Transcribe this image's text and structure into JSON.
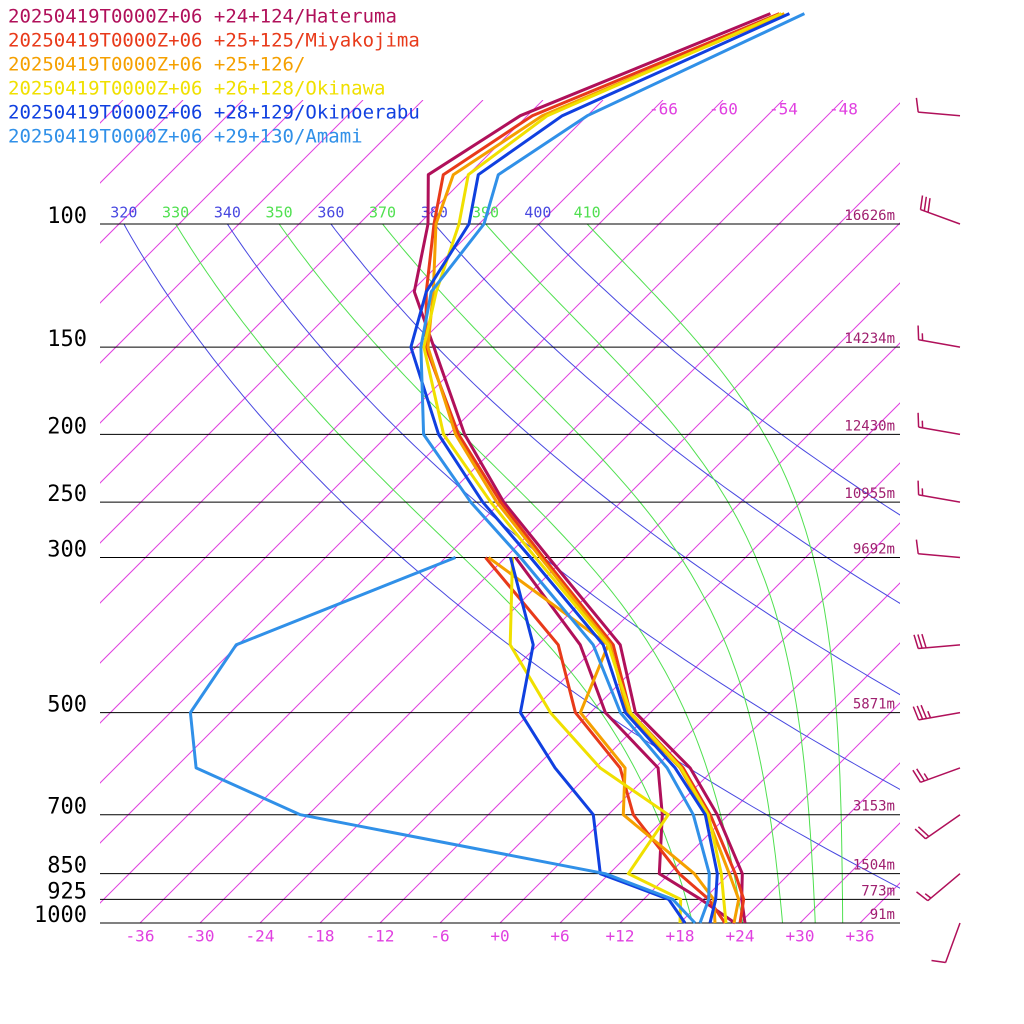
{
  "chart_data": {
    "type": "skewt",
    "pressure": [
      1000,
      925,
      850,
      700,
      600,
      500,
      400,
      300,
      250,
      200,
      150,
      125,
      100,
      85,
      70,
      50
    ],
    "dewpoint_pressure": [
      1000,
      925,
      850,
      700,
      600,
      500,
      400,
      300
    ],
    "series": [
      {
        "name": "20250419T0000Z+06 +24+124/Hateruma",
        "color": "#b0105a",
        "temperature": [
          24.5,
          21.8,
          19.3,
          10.9,
          3.5,
          -7.5,
          -15.8,
          -31.7,
          -41.7,
          -52.4,
          -64.2,
          -71.7,
          -77.1,
          -82,
          -78.7,
          -63.9
        ],
        "dewpoint": [
          23.5,
          17.7,
          11.0,
          5.4,
          0.3,
          -10.5,
          -19.8,
          -35
        ]
      },
      {
        "name": "20250419T0000Z+06 +25+125/Miyakojima",
        "color": "#e83a1a",
        "temperature": [
          24.0,
          22.0,
          18.6,
          10.2,
          2.8,
          -8.0,
          -16.5,
          -32.2,
          -42.0,
          -53.0,
          -65.0,
          -70.5,
          -76.5,
          -80.5,
          -77.5,
          -63.0
        ],
        "dewpoint": [
          22.5,
          18.5,
          13.0,
          2.5,
          -3.5,
          -13.5,
          -22.0,
          -38.0
        ]
      },
      {
        "name": "20250419T0000Z+06 +25+126/",
        "color": "#f5a000",
        "temperature": [
          23.4,
          21.5,
          18.0,
          9.8,
          2.5,
          -8.3,
          -16.8,
          -32.5,
          -42.4,
          -53.3,
          -64.8,
          -69.8,
          -76.3,
          -79.5,
          -76.5,
          -62.5
        ],
        "dewpoint": [
          21.5,
          19.0,
          14.5,
          1.5,
          -3.0,
          -13.0,
          -17.0,
          -37.7
        ]
      },
      {
        "name": "20250419T0000Z+06 +26+128/Okinawa",
        "color": "#f0e000",
        "temperature": [
          22.6,
          20.0,
          17.2,
          10.0,
          2.6,
          -8.0,
          -17.0,
          -33.0,
          -43.0,
          -54.5,
          -65.2,
          -69.5,
          -74.0,
          -78.0,
          -76.0,
          -62.8
        ],
        "dewpoint": [
          18,
          15.7,
          7.9,
          6,
          -5.5,
          -16,
          -26.8,
          -35.3
        ]
      },
      {
        "name": "20250419T0000Z+06 +28+129/Okinoerabu",
        "color": "#1040e0",
        "temperature": [
          21.0,
          19.2,
          16.8,
          9.7,
          2.0,
          -8.5,
          -17.5,
          -33.5,
          -43.8,
          -55.0,
          -66.5,
          -70.5,
          -73.0,
          -77.0,
          -74.5,
          -62.0
        ],
        "dewpoint": [
          18.5,
          14.5,
          5.1,
          -1.5,
          -10,
          -19,
          -24.5,
          -35.5
        ]
      },
      {
        "name": "20250419T0000Z+06 +29+130/Amami",
        "color": "#3090e8",
        "temperature": [
          20.0,
          18.5,
          16.0,
          8.5,
          1.2,
          -9.0,
          -18.5,
          -34.5,
          -45.0,
          -56.5,
          -65.5,
          -70.0,
          -71.5,
          -75.0,
          -72.0,
          -60.5
        ],
        "dewpoint": [
          19.5,
          14.9,
          5.6,
          -30.8,
          -45.9,
          -52,
          -54.2,
          -41
        ]
      }
    ],
    "ylim": [
      100,
      1000
    ],
    "yticks": [
      100,
      150,
      200,
      250,
      300,
      500,
      700,
      850,
      925,
      1000
    ],
    "height_labels": [
      "16626m",
      "14234m",
      "12430m",
      "10955m",
      "9692m",
      "5871m",
      "3153m",
      "1504m",
      "773m",
      "91m"
    ],
    "xlim": [
      -40,
      40
    ],
    "xticks": [
      -36,
      -30,
      -24,
      -18,
      -12,
      -6,
      {
        "value": 0,
        "label": "+0"
      },
      {
        "value": 6,
        "label": "+6"
      },
      {
        "value": 12,
        "label": "+12"
      },
      {
        "value": 18,
        "label": "+18"
      },
      {
        "value": 24,
        "label": "+24"
      },
      {
        "value": 30,
        "label": "+30"
      },
      {
        "value": 36,
        "label": "+36"
      }
    ],
    "isotherm_labels": [
      -66,
      -60,
      -54,
      -48
    ],
    "isotherm_color": "#e040e0",
    "dry_adiabats": [
      320,
      340,
      360,
      380,
      400
    ],
    "dry_adiabat_color": "#4848e0",
    "moist_adiabats": [
      330,
      350,
      370,
      390,
      410
    ],
    "moist_adiabat_color": "#50e050",
    "winds": {
      "color": "#b0105a",
      "pressure": [
        70,
        100,
        150,
        200,
        250,
        300,
        400,
        500,
        600,
        700,
        850,
        1000
      ],
      "direction": [
        275,
        290,
        280,
        280,
        280,
        275,
        265,
        260,
        250,
        235,
        230,
        200
      ],
      "speed": [
        10,
        30,
        15,
        15,
        15,
        10,
        30,
        35,
        25,
        20,
        15,
        10
      ]
    }
  }
}
